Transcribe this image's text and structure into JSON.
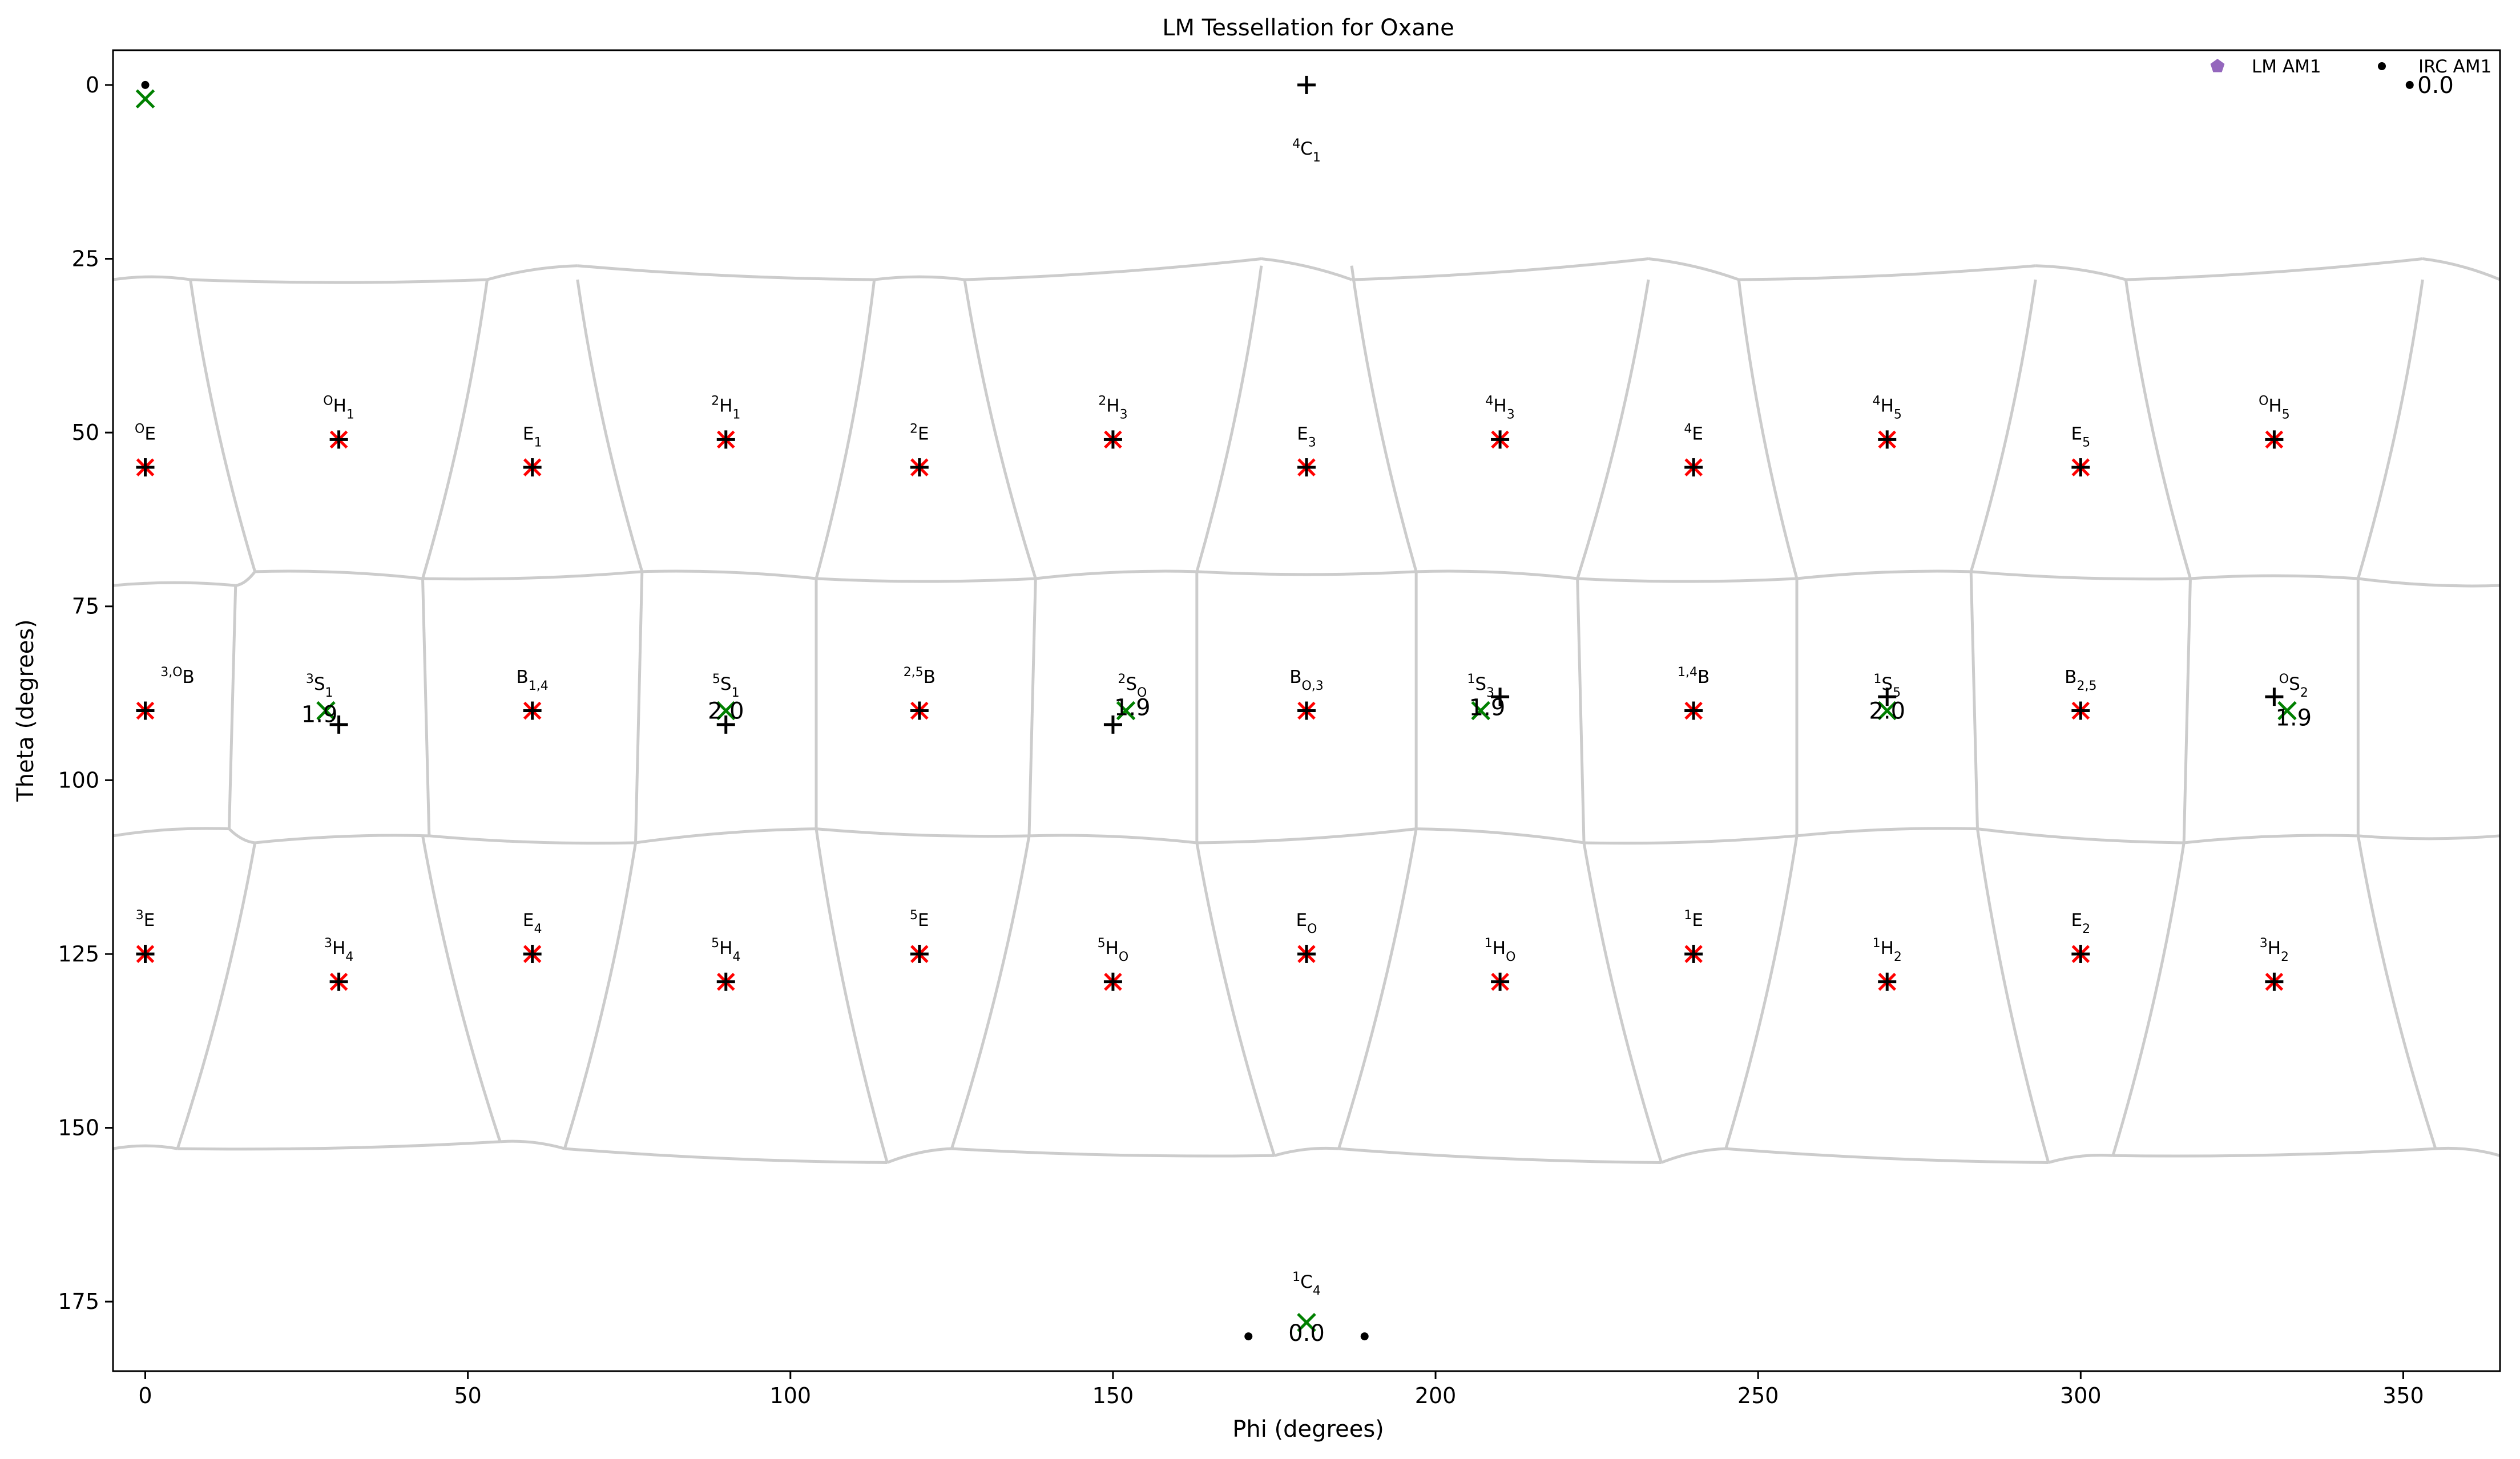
{
  "chart_data": {
    "type": "scatter",
    "title": "LM Tessellation for Oxane",
    "xlabel": "Phi (degrees)",
    "ylabel": "Theta (degrees)",
    "xlim": [
      -5,
      365
    ],
    "ylim": [
      185,
      -5
    ],
    "y_inverted": true,
    "xticks": [
      0,
      50,
      100,
      150,
      200,
      250,
      300,
      350
    ],
    "yticks": [
      0,
      25,
      50,
      75,
      100,
      125,
      150,
      175
    ],
    "grid": false,
    "legend": {
      "placement": "top-right",
      "entries": [
        {
          "label": "LM AM1",
          "marker": "pentagon",
          "color": "#9467bd"
        },
        {
          "label": "IRC AM1",
          "marker": "dot",
          "color": "#000000"
        }
      ]
    },
    "colors": {
      "boundary": "#cccccc",
      "center_cross": "#000000",
      "center_x": "#ff0000",
      "group_x": "#008000",
      "irc": "#000000"
    },
    "cp_labels": [
      {
        "phi": 180,
        "theta": 10,
        "parts": [
          [
            "sup",
            "4"
          ],
          [
            "t",
            "C"
          ],
          [
            "sub",
            "1"
          ]
        ]
      },
      {
        "phi": 180,
        "theta": 173,
        "parts": [
          [
            "sup",
            "1"
          ],
          [
            "t",
            "C"
          ],
          [
            "sub",
            "4"
          ]
        ]
      },
      {
        "phi": 0,
        "theta": 51,
        "parts": [
          [
            "sup",
            "O"
          ],
          [
            "t",
            "E"
          ]
        ]
      },
      {
        "phi": 30,
        "theta": 47,
        "parts": [
          [
            "sup",
            "O"
          ],
          [
            "t",
            "H"
          ],
          [
            "sub",
            "1"
          ]
        ]
      },
      {
        "phi": 60,
        "theta": 51,
        "parts": [
          [
            "t",
            "E"
          ],
          [
            "sub",
            "1"
          ]
        ]
      },
      {
        "phi": 90,
        "theta": 47,
        "parts": [
          [
            "sup",
            "2"
          ],
          [
            "t",
            "H"
          ],
          [
            "sub",
            "1"
          ]
        ]
      },
      {
        "phi": 120,
        "theta": 51,
        "parts": [
          [
            "sup",
            "2"
          ],
          [
            "t",
            "E"
          ]
        ]
      },
      {
        "phi": 150,
        "theta": 47,
        "parts": [
          [
            "sup",
            "2"
          ],
          [
            "t",
            "H"
          ],
          [
            "sub",
            "3"
          ]
        ]
      },
      {
        "phi": 180,
        "theta": 51,
        "parts": [
          [
            "t",
            "E"
          ],
          [
            "sub",
            "3"
          ]
        ]
      },
      {
        "phi": 210,
        "theta": 47,
        "parts": [
          [
            "sup",
            "4"
          ],
          [
            "t",
            "H"
          ],
          [
            "sub",
            "3"
          ]
        ]
      },
      {
        "phi": 240,
        "theta": 51,
        "parts": [
          [
            "sup",
            "4"
          ],
          [
            "t",
            "E"
          ]
        ]
      },
      {
        "phi": 270,
        "theta": 47,
        "parts": [
          [
            "sup",
            "4"
          ],
          [
            "t",
            "H"
          ],
          [
            "sub",
            "5"
          ]
        ]
      },
      {
        "phi": 300,
        "theta": 51,
        "parts": [
          [
            "t",
            "E"
          ],
          [
            "sub",
            "5"
          ]
        ]
      },
      {
        "phi": 330,
        "theta": 47,
        "parts": [
          [
            "sup",
            "O"
          ],
          [
            "t",
            "H"
          ],
          [
            "sub",
            "5"
          ]
        ]
      },
      {
        "phi": 5,
        "theta": 86,
        "parts": [
          [
            "sup",
            "3,O"
          ],
          [
            "t",
            "B"
          ]
        ]
      },
      {
        "phi": 27,
        "theta": 87,
        "parts": [
          [
            "sup",
            "3"
          ],
          [
            "t",
            "S"
          ],
          [
            "sub",
            "1"
          ]
        ]
      },
      {
        "phi": 60,
        "theta": 86,
        "parts": [
          [
            "t",
            "B"
          ],
          [
            "sub",
            "1,4"
          ]
        ]
      },
      {
        "phi": 90,
        "theta": 87,
        "parts": [
          [
            "sup",
            "5"
          ],
          [
            "t",
            "S"
          ],
          [
            "sub",
            "1"
          ]
        ]
      },
      {
        "phi": 120,
        "theta": 86,
        "parts": [
          [
            "sup",
            "2,5"
          ],
          [
            "t",
            "B"
          ]
        ]
      },
      {
        "phi": 153,
        "theta": 87,
        "parts": [
          [
            "sup",
            "2"
          ],
          [
            "t",
            "S"
          ],
          [
            "sub",
            "O"
          ]
        ]
      },
      {
        "phi": 180,
        "theta": 86,
        "parts": [
          [
            "t",
            "B"
          ],
          [
            "sub",
            "O,3"
          ]
        ]
      },
      {
        "phi": 207,
        "theta": 87,
        "parts": [
          [
            "sup",
            "1"
          ],
          [
            "t",
            "S"
          ],
          [
            "sub",
            "3"
          ]
        ]
      },
      {
        "phi": 240,
        "theta": 86,
        "parts": [
          [
            "sup",
            "1,4"
          ],
          [
            "t",
            "B"
          ]
        ]
      },
      {
        "phi": 270,
        "theta": 87,
        "parts": [
          [
            "sup",
            "1"
          ],
          [
            "t",
            "S"
          ],
          [
            "sub",
            "5"
          ]
        ]
      },
      {
        "phi": 300,
        "theta": 86,
        "parts": [
          [
            "t",
            "B"
          ],
          [
            "sub",
            "2,5"
          ]
        ]
      },
      {
        "phi": 333,
        "theta": 87,
        "parts": [
          [
            "sup",
            "O"
          ],
          [
            "t",
            "S"
          ],
          [
            "sub",
            "2"
          ]
        ]
      },
      {
        "phi": 0,
        "theta": 121,
        "parts": [
          [
            "sup",
            "3"
          ],
          [
            "t",
            "E"
          ]
        ]
      },
      {
        "phi": 30,
        "theta": 125,
        "parts": [
          [
            "sup",
            "3"
          ],
          [
            "t",
            "H"
          ],
          [
            "sub",
            "4"
          ]
        ]
      },
      {
        "phi": 60,
        "theta": 121,
        "parts": [
          [
            "t",
            "E"
          ],
          [
            "sub",
            "4"
          ]
        ]
      },
      {
        "phi": 90,
        "theta": 125,
        "parts": [
          [
            "sup",
            "5"
          ],
          [
            "t",
            "H"
          ],
          [
            "sub",
            "4"
          ]
        ]
      },
      {
        "phi": 120,
        "theta": 121,
        "parts": [
          [
            "sup",
            "5"
          ],
          [
            "t",
            "E"
          ]
        ]
      },
      {
        "phi": 150,
        "theta": 125,
        "parts": [
          [
            "sup",
            "5"
          ],
          [
            "t",
            "H"
          ],
          [
            "sub",
            "O"
          ]
        ]
      },
      {
        "phi": 180,
        "theta": 121,
        "parts": [
          [
            "t",
            "E"
          ],
          [
            "sub",
            "O"
          ]
        ]
      },
      {
        "phi": 210,
        "theta": 125,
        "parts": [
          [
            "sup",
            "1"
          ],
          [
            "t",
            "H"
          ],
          [
            "sub",
            "O"
          ]
        ]
      },
      {
        "phi": 240,
        "theta": 121,
        "parts": [
          [
            "sup",
            "1"
          ],
          [
            "t",
            "E"
          ]
        ]
      },
      {
        "phi": 270,
        "theta": 125,
        "parts": [
          [
            "sup",
            "1"
          ],
          [
            "t",
            "H"
          ],
          [
            "sub",
            "2"
          ]
        ]
      },
      {
        "phi": 300,
        "theta": 121,
        "parts": [
          [
            "t",
            "E"
          ],
          [
            "sub",
            "2"
          ]
        ]
      },
      {
        "phi": 330,
        "theta": 125,
        "parts": [
          [
            "sup",
            "3"
          ],
          [
            "t",
            "H"
          ],
          [
            "sub",
            "2"
          ]
        ]
      }
    ],
    "cp_points": [
      [
        0,
        55
      ],
      [
        30,
        51
      ],
      [
        60,
        55
      ],
      [
        90,
        51
      ],
      [
        120,
        55
      ],
      [
        150,
        51
      ],
      [
        180,
        55
      ],
      [
        210,
        51
      ],
      [
        240,
        55
      ],
      [
        270,
        51
      ],
      [
        300,
        55
      ],
      [
        330,
        51
      ],
      [
        0,
        90
      ],
      [
        60,
        90
      ],
      [
        120,
        90
      ],
      [
        180,
        90
      ],
      [
        240,
        90
      ],
      [
        300,
        90
      ],
      [
        0,
        125
      ],
      [
        30,
        129
      ],
      [
        60,
        125
      ],
      [
        90,
        129
      ],
      [
        120,
        125
      ],
      [
        150,
        129
      ],
      [
        180,
        125
      ],
      [
        210,
        129
      ],
      [
        240,
        125
      ],
      [
        270,
        129
      ],
      [
        300,
        125
      ],
      [
        330,
        129
      ]
    ],
    "extra_centers": [
      [
        180,
        0
      ],
      [
        30,
        92
      ],
      [
        90,
        92
      ],
      [
        150,
        92
      ],
      [
        210,
        88
      ],
      [
        270,
        88
      ],
      [
        330,
        88
      ]
    ],
    "group_x_points": [
      [
        0,
        2
      ],
      [
        180,
        178
      ],
      [
        28,
        90
      ],
      [
        90,
        90
      ],
      [
        152,
        90
      ],
      [
        207,
        90
      ],
      [
        270,
        90
      ],
      [
        332,
        90
      ]
    ],
    "irc_points": [
      [
        0,
        0
      ],
      [
        351,
        0
      ],
      [
        171,
        180
      ],
      [
        189,
        180
      ]
    ],
    "pathway_labels": [
      {
        "phi": 27,
        "theta": 90.5,
        "text": "1.9"
      },
      {
        "phi": 90,
        "theta": 90,
        "text": "2.0"
      },
      {
        "phi": 153,
        "theta": 89.5,
        "text": "1.9"
      },
      {
        "phi": 208,
        "theta": 89.5,
        "text": "1.9"
      },
      {
        "phi": 270,
        "theta": 90,
        "text": "2.0"
      },
      {
        "phi": 333,
        "theta": 91,
        "text": "1.9"
      },
      {
        "phi": 180,
        "theta": 179.5,
        "text": "0.0"
      },
      {
        "phi": 355,
        "theta": 0,
        "text": "0.0"
      }
    ],
    "row_boundaries": {
      "r1_theta": [
        28,
        28,
        26,
        28,
        28,
        25,
        28,
        25,
        28,
        26,
        28,
        25,
        28
      ],
      "r2_theta": [
        72,
        70,
        71,
        70,
        71,
        70,
        71,
        70,
        72
      ],
      "r3_theta": [
        108,
        109,
        107,
        109,
        107,
        109,
        107,
        109,
        108
      ],
      "r4_theta": [
        153,
        152,
        155,
        153,
        154,
        153,
        155,
        153,
        154
      ]
    }
  }
}
